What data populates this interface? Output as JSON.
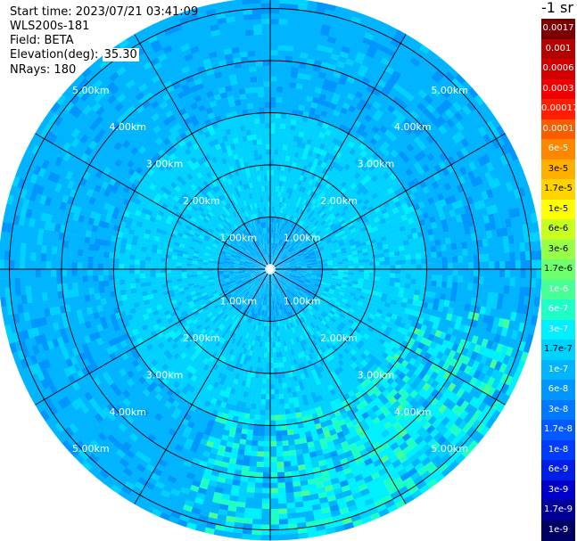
{
  "header": {
    "start_time": "Start time: 2023/07/21 03:41:09",
    "instrument": "WLS200s-181",
    "field": "Field: BETA",
    "elevation_label": "Elevation(deg):",
    "elevation_value": "35.30",
    "nrays": "NRays: 180"
  },
  "colorbar": {
    "unit_label": "-1 sr",
    "entries": [
      {
        "label": "0.0017",
        "color": "#7a0000",
        "text_color": "#ffffff"
      },
      {
        "label": "0.001",
        "color": "#b40000",
        "text_color": "#ffffff"
      },
      {
        "label": "0.0006",
        "color": "#d20000",
        "text_color": "#ffffff"
      },
      {
        "label": "0.0003",
        "color": "#f00000",
        "text_color": "#ffffff"
      },
      {
        "label": "0.00017",
        "color": "#ff1e00",
        "text_color": "#ffffff"
      },
      {
        "label": "0.0001",
        "color": "#ff5a00",
        "text_color": "#ffffff"
      },
      {
        "label": "6e-5",
        "color": "#ff8700",
        "text_color": "#ffffff"
      },
      {
        "label": "3e-5",
        "color": "#ffaf00",
        "text_color": "#000000"
      },
      {
        "label": "1.7e-5",
        "color": "#ffd200",
        "text_color": "#000000"
      },
      {
        "label": "1e-5",
        "color": "#ffff00",
        "text_color": "#000000"
      },
      {
        "label": "6e-6",
        "color": "#c8ff1e",
        "text_color": "#000000"
      },
      {
        "label": "3e-6",
        "color": "#96ff46",
        "text_color": "#000000"
      },
      {
        "label": "1.7e-6",
        "color": "#6eff6e",
        "text_color": "#000000"
      },
      {
        "label": "1e-6",
        "color": "#46ff96",
        "text_color": "#ffffff"
      },
      {
        "label": "6e-7",
        "color": "#1effc8",
        "text_color": "#ffffff"
      },
      {
        "label": "3e-7",
        "color": "#00f0ff",
        "text_color": "#ffffff"
      },
      {
        "label": "1.7e-7",
        "color": "#00d2ff",
        "text_color": "#000000"
      },
      {
        "label": "1e-7",
        "color": "#00b4ff",
        "text_color": "#ffffff"
      },
      {
        "label": "6e-8",
        "color": "#0096ff",
        "text_color": "#ffffff"
      },
      {
        "label": "3e-8",
        "color": "#0078ff",
        "text_color": "#ffffff"
      },
      {
        "label": "1.7e-8",
        "color": "#005aff",
        "text_color": "#ffffff"
      },
      {
        "label": "1e-8",
        "color": "#003cff",
        "text_color": "#ffffff"
      },
      {
        "label": "6e-9",
        "color": "#001ee6",
        "text_color": "#ffffff"
      },
      {
        "label": "3e-9",
        "color": "#0000c8",
        "text_color": "#ffffff"
      },
      {
        "label": "1.7e-9",
        "color": "#000096",
        "text_color": "#ffffff"
      },
      {
        "label": "1e-9",
        "color": "#000064",
        "text_color": "#ffffff"
      }
    ]
  },
  "chart_data": {
    "type": "polar-ppi",
    "range_rings_km": [
      1,
      2,
      3,
      4,
      5
    ],
    "ring_labels": [
      "1.00km",
      "2.00km",
      "3.00km",
      "4.00km",
      "5.00km"
    ],
    "max_range_km": 5.2,
    "spoke_step_deg": 30,
    "field_levels_by_range_km": [
      {
        "range": [
          0.0,
          1.0
        ],
        "value": "1e-7"
      },
      {
        "range": [
          1.0,
          2.0
        ],
        "value": "1.7e-7"
      },
      {
        "range": [
          2.0,
          3.0
        ],
        "value": "1.7e-7"
      },
      {
        "range": [
          3.0,
          5.2
        ],
        "value": "1e-7"
      }
    ],
    "enhanced_region": {
      "azimuth_deg": [
        100,
        200
      ],
      "range_km": [
        2.8,
        5.2
      ],
      "value": "3e-7"
    }
  }
}
